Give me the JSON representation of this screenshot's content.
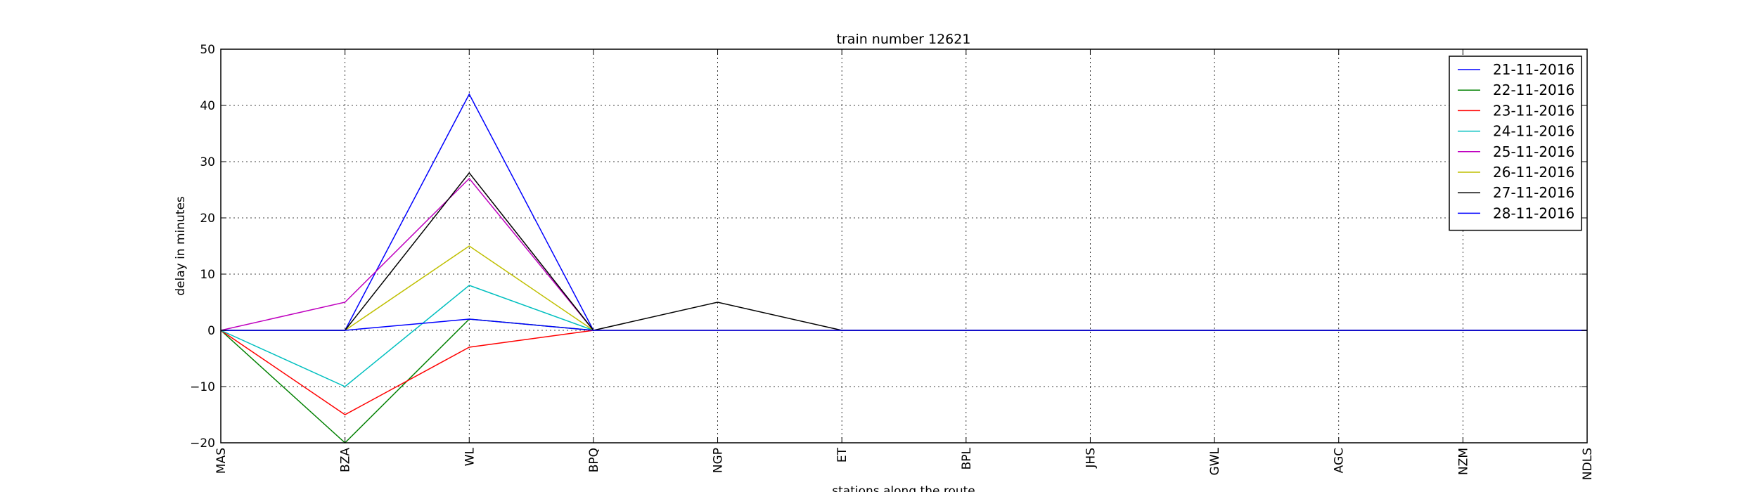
{
  "chart_data": {
    "type": "line",
    "title": "train number 12621",
    "xlabel": "stations along the route",
    "ylabel": "delay in minutes",
    "categories": [
      "MAS",
      "BZA",
      "WL",
      "BPQ",
      "NGP",
      "ET",
      "BPL",
      "JHS",
      "GWL",
      "AGC",
      "NZM",
      "NDLS"
    ],
    "ylim": [
      -20,
      50
    ],
    "yticks": [
      -20,
      -10,
      0,
      10,
      20,
      30,
      40,
      50
    ],
    "grid": true,
    "legend_position": "top-right",
    "series": [
      {
        "name": "21-11-2016",
        "color": "#0000ff",
        "values": [
          0,
          0,
          42,
          0,
          0,
          0,
          0,
          0,
          0,
          0,
          0,
          0
        ]
      },
      {
        "name": "22-11-2016",
        "color": "#008000",
        "values": [
          0,
          -20,
          2,
          0,
          0,
          0,
          0,
          0,
          0,
          0,
          0,
          0
        ]
      },
      {
        "name": "23-11-2016",
        "color": "#ff0000",
        "values": [
          0,
          -15,
          -3,
          0,
          0,
          0,
          0,
          0,
          0,
          0,
          0,
          0
        ]
      },
      {
        "name": "24-11-2016",
        "color": "#00bfbf",
        "values": [
          0,
          -10,
          8,
          0,
          0,
          0,
          0,
          0,
          0,
          0,
          0,
          0
        ]
      },
      {
        "name": "25-11-2016",
        "color": "#bf00bf",
        "values": [
          0,
          5,
          27,
          0,
          0,
          0,
          0,
          0,
          0,
          0,
          0,
          0
        ]
      },
      {
        "name": "26-11-2016",
        "color": "#bfbf00",
        "values": [
          0,
          0,
          15,
          0,
          0,
          0,
          0,
          0,
          0,
          0,
          0,
          0
        ]
      },
      {
        "name": "27-11-2016",
        "color": "#000000",
        "values": [
          0,
          0,
          28,
          0,
          5,
          0,
          0,
          0,
          0,
          0,
          0,
          0
        ]
      },
      {
        "name": "28-11-2016",
        "color": "#0000ff",
        "values": [
          0,
          0,
          2,
          0,
          0,
          0,
          0,
          0,
          0,
          0,
          0,
          0
        ]
      }
    ]
  }
}
